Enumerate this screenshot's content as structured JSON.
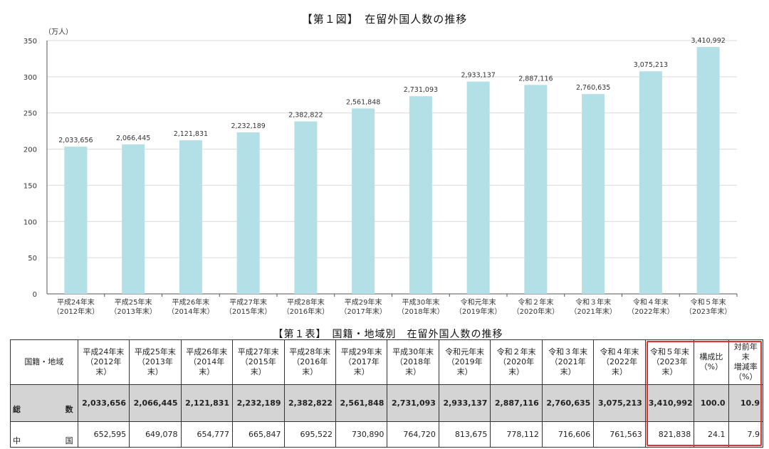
{
  "chart_data": {
    "type": "bar",
    "title": "【第１図】　在留外国人数の推移",
    "ylabel": "（万人）",
    "ylim": [
      0,
      350
    ],
    "yticks": [
      0,
      50,
      100,
      150,
      200,
      250,
      300,
      350
    ],
    "grid": true,
    "bar_color": "#b3dfe7",
    "categories": [
      [
        "平成24年末",
        "（2012年末）"
      ],
      [
        "平成25年末",
        "（2013年末）"
      ],
      [
        "平成26年末",
        "（2014年末）"
      ],
      [
        "平成27年末",
        "（2015年末）"
      ],
      [
        "平成28年末",
        "（2016年末）"
      ],
      [
        "平成29年末",
        "（2017年末）"
      ],
      [
        "平成30年末",
        "（2018年末）"
      ],
      [
        "令和元年末",
        "（2019年末）"
      ],
      [
        "令和２年末",
        "（2020年末）"
      ],
      [
        "令和３年末",
        "（2021年末）"
      ],
      [
        "令和４年末",
        "（2022年末）"
      ],
      [
        "令和５年末",
        "（2023年末）"
      ]
    ],
    "values": [
      2033656,
      2066445,
      2121831,
      2232189,
      2382822,
      2561848,
      2731093,
      2933137,
      2887116,
      2760635,
      3075213,
      3410992
    ],
    "data_labels": [
      "2,033,656",
      "2,066,445",
      "2,121,831",
      "2,232,189",
      "2,382,822",
      "2,561,848",
      "2,731,093",
      "2,933,137",
      "2,887,116",
      "2,760,635",
      "3,075,213",
      "3,410,992"
    ]
  },
  "table": {
    "title": "【第１表】　国籍・地域別　在留外国人数の推移",
    "corner_header": "国籍・地域",
    "headers": [
      [
        "平成24年末",
        "（2012年末）"
      ],
      [
        "平成25年末",
        "（2013年末）"
      ],
      [
        "平成26年末",
        "（2014年末）"
      ],
      [
        "平成27年末",
        "（2015年末）"
      ],
      [
        "平成28年末",
        "（2016年末）"
      ],
      [
        "平成29年末",
        "（2017年末）"
      ],
      [
        "平成30年末",
        "（2018年末）"
      ],
      [
        "令和元年末",
        "（2019年末）"
      ],
      [
        "令和２年末",
        "（2020年末）"
      ],
      [
        "令和３年末",
        "（2021年末）"
      ],
      [
        "令和４年末",
        "（2022年末）"
      ],
      [
        "令和５年末",
        "（2023年末）"
      ],
      [
        "構成比",
        "（%）"
      ],
      [
        "対前年末",
        "増減率",
        "（%）"
      ]
    ],
    "rows": [
      {
        "label_left": "総",
        "label_right": "数",
        "values": [
          "2,033,656",
          "2,066,445",
          "2,121,831",
          "2,232,189",
          "2,382,822",
          "2,561,848",
          "2,731,093",
          "2,933,137",
          "2,887,116",
          "2,760,635",
          "3,075,213",
          "3,410,992",
          "100.0",
          "10.9"
        ]
      },
      {
        "label_left": "中",
        "label_right": "国",
        "values": [
          "652,595",
          "649,078",
          "654,777",
          "665,847",
          "695,522",
          "730,890",
          "764,720",
          "813,675",
          "778,112",
          "716,606",
          "761,563",
          "821,838",
          "24.1",
          "7.9"
        ]
      }
    ],
    "highlight_color": "#e03030"
  }
}
